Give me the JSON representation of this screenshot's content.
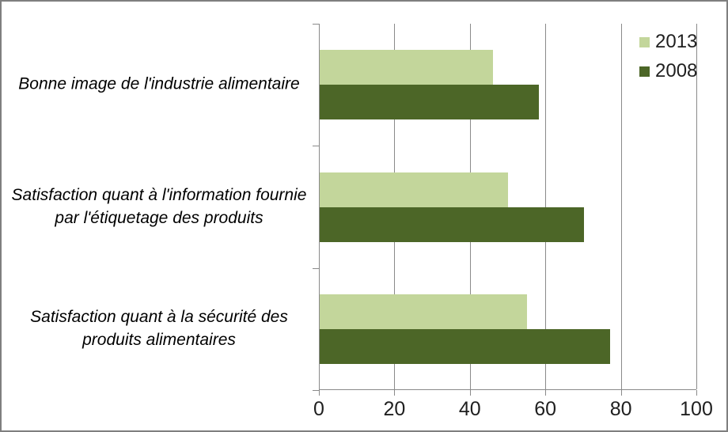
{
  "chart_data": {
    "type": "bar",
    "orientation": "horizontal",
    "title": "",
    "categories": [
      "Bonne image de l'industrie alimentaire",
      "Satisfaction quant à l'information fournie par l'étiquetage des produits",
      "Satisfaction quant à la sécurité des produits alimentaires"
    ],
    "series": [
      {
        "name": "2013",
        "color": "#c3d69b",
        "values": [
          46,
          50,
          55
        ]
      },
      {
        "name": "2008",
        "color": "#4c6627",
        "values": [
          58,
          70,
          77
        ]
      }
    ],
    "xlim": [
      0,
      100
    ],
    "x_ticks": [
      0,
      20,
      40,
      60,
      80,
      100
    ],
    "grid": true,
    "legend_position": "top-right"
  },
  "colors": {
    "series_2013": "#c3d69b",
    "series_2008": "#4c6627",
    "gridline": "#8a8a8a",
    "axis_line": "#8a8a8a",
    "frame_border": "#7f7f7f",
    "text": "#1f1f1f"
  }
}
